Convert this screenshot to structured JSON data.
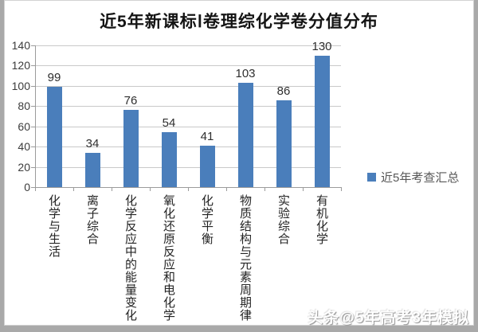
{
  "title": "近5年新课标Ⅰ卷理综化学卷分值分布",
  "chart_data": {
    "type": "bar",
    "title": "近5年新课标Ⅰ卷理综化学卷分值分布",
    "categories": [
      "化学与生活",
      "离子综合",
      "化学反应中的能量变化",
      "氧化还原反应和电化学",
      "化学平衡",
      "物质结构与元素周期律",
      "实验综合",
      "有机化学"
    ],
    "values": [
      99,
      34,
      76,
      54,
      41,
      103,
      86,
      130
    ],
    "series_name": "近5年考查汇总",
    "legend_label": "近5年考查汇总",
    "legend_position": "right",
    "value_labels_shown": true,
    "grid": true,
    "xlabel": "",
    "ylabel": "",
    "ylim": [
      0,
      140
    ],
    "yticks": [
      0,
      20,
      40,
      60,
      80,
      100,
      120,
      140
    ],
    "bar_color": "#4a7ebb"
  },
  "watermark": {
    "text": "头条@5年高考3年模拟"
  }
}
